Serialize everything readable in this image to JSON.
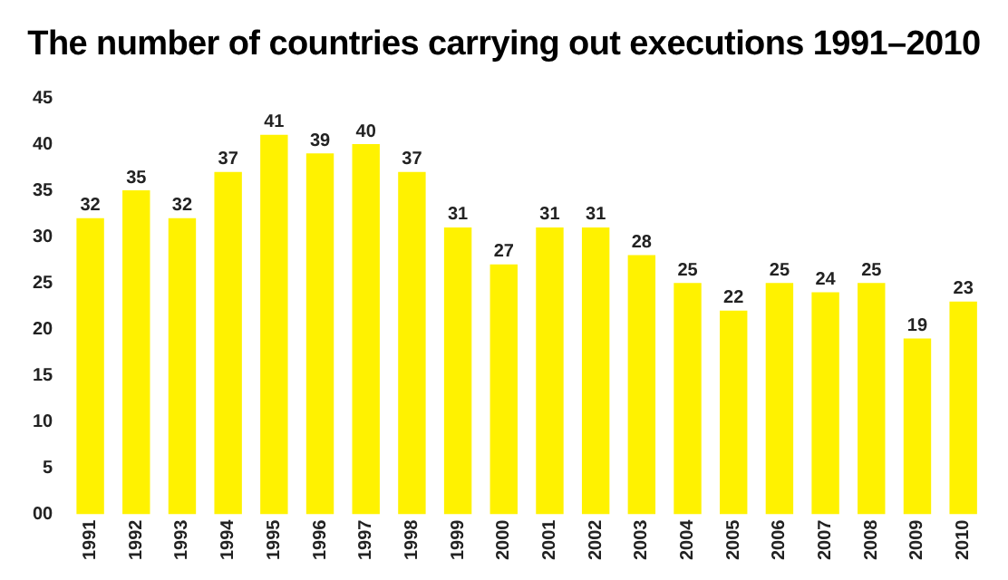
{
  "chart_data": {
    "type": "bar",
    "title": "The number of countries carrying out executions 1991–2010",
    "categories": [
      "1991",
      "1992",
      "1993",
      "1994",
      "1995",
      "1996",
      "1997",
      "1998",
      "1999",
      "2000",
      "2001",
      "2002",
      "2003",
      "2004",
      "2005",
      "2006",
      "2007",
      "2008",
      "2009",
      "2010"
    ],
    "values": [
      32,
      35,
      32,
      37,
      41,
      39,
      40,
      37,
      31,
      27,
      31,
      31,
      28,
      25,
      22,
      25,
      24,
      25,
      19,
      23
    ],
    "color": "#fff200",
    "ylim": [
      0,
      45
    ],
    "yticks": [
      {
        "value": 0,
        "label": "00"
      },
      5,
      10,
      15,
      20,
      25,
      30,
      35,
      40,
      45
    ],
    "data_labels": true,
    "grid": false,
    "legend": false
  }
}
